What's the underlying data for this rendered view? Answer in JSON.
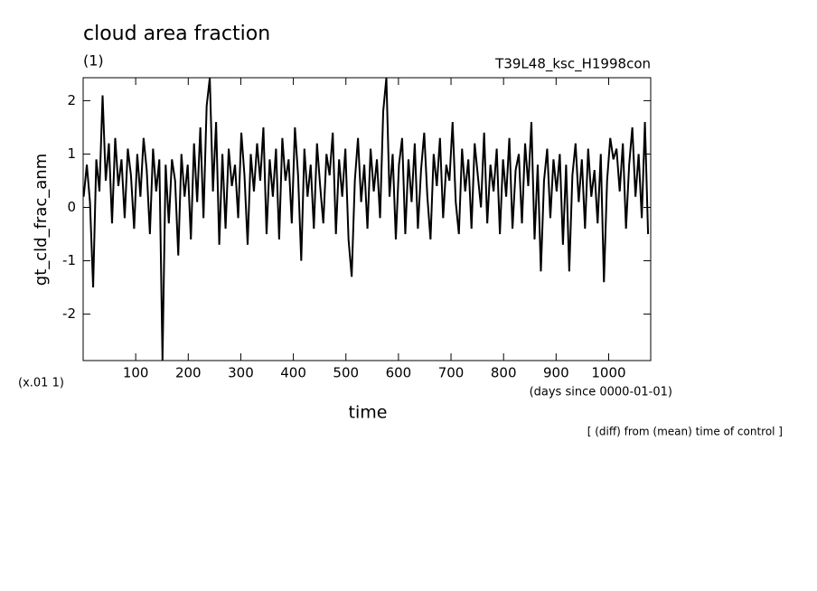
{
  "chart_data": {
    "type": "line",
    "title": "cloud area fraction",
    "subtitle": "(1)",
    "run_label": "T39L48_ksc_H1998con",
    "ylabel": "gt_cld_frac_anm",
    "yunit": "(x.01 1)",
    "xlabel": "time",
    "xunit": "(days since 0000-01-01)",
    "note": "[ (diff) from (mean) time of control ]",
    "xlim": [
      0,
      1080
    ],
    "ylim": [
      -2.87,
      2.43
    ],
    "xticks": [
      100,
      200,
      300,
      400,
      500,
      600,
      700,
      800,
      900,
      1000
    ],
    "yticks": [
      -2,
      -1,
      0,
      1,
      2
    ],
    "color": "#000000",
    "x": [
      1,
      7,
      13,
      19,
      25,
      31,
      37,
      43,
      49,
      55,
      61,
      67,
      73,
      79,
      85,
      91,
      97,
      103,
      109,
      115,
      121,
      127,
      133,
      139,
      145,
      151,
      157,
      163,
      169,
      175,
      181,
      187,
      193,
      199,
      205,
      211,
      217,
      223,
      229,
      235,
      241,
      247,
      253,
      259,
      265,
      271,
      277,
      283,
      289,
      295,
      301,
      307,
      313,
      319,
      325,
      331,
      337,
      343,
      349,
      355,
      361,
      367,
      373,
      379,
      385,
      391,
      397,
      403,
      409,
      415,
      421,
      427,
      433,
      439,
      445,
      451,
      457,
      463,
      469,
      475,
      481,
      487,
      493,
      499,
      505,
      511,
      517,
      523,
      529,
      535,
      541,
      547,
      553,
      559,
      565,
      571,
      577,
      583,
      589,
      595,
      601,
      607,
      613,
      619,
      625,
      631,
      637,
      643,
      649,
      655,
      661,
      667,
      673,
      679,
      685,
      691,
      697,
      703,
      709,
      715,
      721,
      727,
      733,
      739,
      745,
      751,
      757,
      763,
      769,
      775,
      781,
      787,
      793,
      799,
      805,
      811,
      817,
      823,
      829,
      835,
      841,
      847,
      853,
      859,
      865,
      871,
      877,
      883,
      889,
      895,
      901,
      907,
      913,
      919,
      925,
      931,
      937,
      943,
      949,
      955,
      961,
      967,
      973,
      979,
      985,
      991,
      997,
      1003,
      1009,
      1015,
      1021,
      1027,
      1033,
      1039,
      1045,
      1051,
      1057,
      1063,
      1069,
      1075
    ],
    "values": [
      0.2,
      0.8,
      0.1,
      -1.5,
      0.9,
      0.3,
      2.1,
      0.5,
      1.2,
      -0.3,
      1.3,
      0.4,
      0.9,
      -0.2,
      1.1,
      0.6,
      -0.4,
      1.0,
      0.2,
      1.3,
      0.7,
      -0.5,
      1.1,
      0.3,
      0.9,
      -2.87,
      0.8,
      -0.3,
      0.9,
      0.5,
      -0.9,
      1.0,
      0.2,
      0.8,
      -0.6,
      1.2,
      0.1,
      1.5,
      -0.2,
      1.9,
      2.43,
      0.3,
      1.6,
      -0.7,
      1.0,
      -0.4,
      1.1,
      0.4,
      0.8,
      -0.2,
      1.4,
      0.6,
      -0.7,
      1.0,
      0.3,
      1.2,
      0.5,
      1.5,
      -0.5,
      0.9,
      0.2,
      1.1,
      -0.6,
      1.3,
      0.5,
      0.9,
      -0.3,
      1.5,
      0.6,
      -1.0,
      1.1,
      0.2,
      0.8,
      -0.4,
      1.2,
      0.4,
      -0.3,
      1.0,
      0.6,
      1.4,
      -0.5,
      0.9,
      0.2,
      1.1,
      -0.6,
      -1.3,
      0.5,
      1.3,
      0.1,
      0.8,
      -0.4,
      1.1,
      0.3,
      0.9,
      -0.2,
      1.8,
      2.43,
      0.2,
      1.0,
      -0.6,
      0.8,
      1.3,
      -0.5,
      0.9,
      0.1,
      1.2,
      -0.4,
      0.7,
      1.4,
      0.2,
      -0.6,
      1.0,
      0.4,
      1.3,
      -0.2,
      0.8,
      0.5,
      1.6,
      0.1,
      -0.5,
      1.1,
      0.3,
      0.9,
      -0.4,
      1.2,
      0.6,
      0.0,
      1.4,
      -0.3,
      0.8,
      0.3,
      1.1,
      -0.5,
      0.9,
      0.2,
      1.3,
      -0.4,
      0.7,
      1.0,
      -0.3,
      1.2,
      0.4,
      1.6,
      -0.6,
      0.8,
      -1.2,
      0.5,
      1.1,
      -0.2,
      0.9,
      0.3,
      1.0,
      -0.7,
      0.8,
      -1.2,
      0.6,
      1.2,
      0.1,
      0.9,
      -0.4,
      1.1,
      0.2,
      0.7,
      -0.3,
      1.0,
      -1.4,
      0.5,
      1.3,
      0.9,
      1.1,
      0.3,
      1.2,
      -0.4,
      0.8,
      1.5,
      0.2,
      1.0,
      -0.2,
      1.6,
      -0.5
    ]
  }
}
